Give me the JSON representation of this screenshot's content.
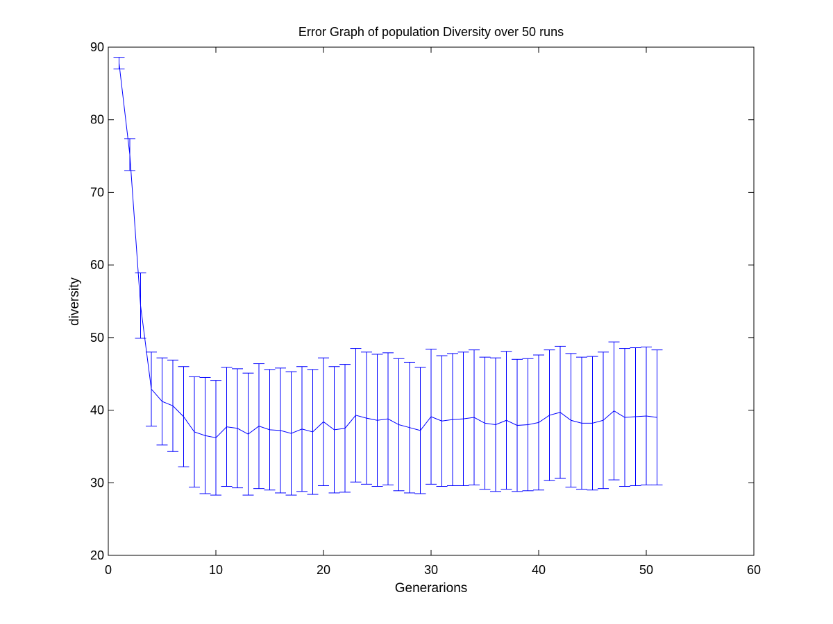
{
  "chart_data": {
    "type": "line",
    "title": "Error Graph of population Diversity over 50 runs",
    "xlabel": "Generarions",
    "ylabel": "diversity",
    "xlim": [
      0,
      60
    ],
    "ylim": [
      20,
      90
    ],
    "xticks": [
      "0",
      "10",
      "20",
      "30",
      "40",
      "50",
      "60"
    ],
    "yticks": [
      "20",
      "30",
      "40",
      "50",
      "60",
      "70",
      "80",
      "90"
    ],
    "grid": false,
    "line_color": "#0000ff",
    "series": [
      {
        "x": [
          1,
          2,
          3,
          4,
          5,
          6,
          7,
          8,
          9,
          10,
          11,
          12,
          13,
          14,
          15,
          16,
          17,
          18,
          19,
          20,
          21,
          22,
          23,
          24,
          25,
          26,
          27,
          28,
          29,
          30,
          31,
          32,
          33,
          34,
          35,
          36,
          37,
          38,
          39,
          40,
          41,
          42,
          43,
          44,
          45,
          46,
          47,
          48,
          49,
          50,
          51
        ],
        "y": [
          87.8,
          75.2,
          54.4,
          42.9,
          41.2,
          40.6,
          39.1,
          37.0,
          36.5,
          36.2,
          37.7,
          37.5,
          36.7,
          37.8,
          37.3,
          37.2,
          36.8,
          37.4,
          37.0,
          38.4,
          37.3,
          37.5,
          39.3,
          38.9,
          38.6,
          38.8,
          38.0,
          37.6,
          37.2,
          39.1,
          38.5,
          38.7,
          38.8,
          39.0,
          38.2,
          38.0,
          38.6,
          37.9,
          38.0,
          38.3,
          39.3,
          39.7,
          38.6,
          38.2,
          38.2,
          38.6,
          39.9,
          39.0,
          39.1,
          39.2,
          39.0
        ],
        "yerr": [
          0.8,
          2.2,
          4.5,
          5.1,
          6.0,
          6.3,
          6.9,
          7.6,
          8.0,
          7.9,
          8.2,
          8.2,
          8.4,
          8.6,
          8.3,
          8.6,
          8.5,
          8.6,
          8.6,
          8.8,
          8.7,
          8.8,
          9.2,
          9.1,
          9.1,
          9.1,
          9.1,
          9.0,
          8.7,
          9.3,
          9.0,
          9.1,
          9.2,
          9.3,
          9.1,
          9.2,
          9.5,
          9.1,
          9.1,
          9.3,
          9.0,
          9.1,
          9.2,
          9.1,
          9.2,
          9.4,
          9.5,
          9.5,
          9.5,
          9.5,
          9.3
        ]
      }
    ]
  }
}
